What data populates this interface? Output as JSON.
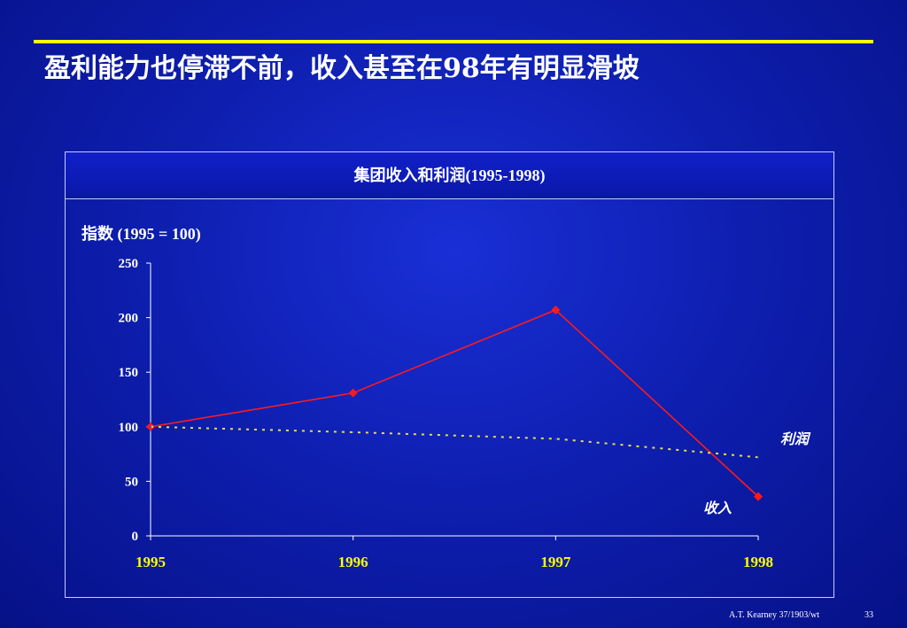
{
  "slide": {
    "title": "盈利能力也停滞不前，收入甚至在98年有明显滑坡"
  },
  "chart_data": {
    "type": "line",
    "title": "集团收入和利润(1995-1998)",
    "ylabel": "指数 (1995 = 100)",
    "categories": [
      "1995",
      "1996",
      "1997",
      "1998"
    ],
    "ylim": [
      0,
      250
    ],
    "yticks": [
      "0",
      "50",
      "100",
      "150",
      "200",
      "250"
    ],
    "grid": false,
    "series": [
      {
        "name": "收入",
        "values": [
          100,
          131,
          207,
          36
        ],
        "color": "#ff1a1a",
        "style": "solid",
        "marker": "diamond"
      },
      {
        "name": "利润",
        "values": [
          100,
          95,
          89,
          72
        ],
        "color": "#e6e04a",
        "style": "dotted",
        "marker": "none"
      }
    ]
  },
  "footer": {
    "source": "A.T. Kearney 37/1903/wt",
    "page": "33"
  },
  "colors": {
    "background": "#0e1fb0",
    "rule": "#ffff00",
    "tick_labels_x": "#ffff00",
    "axis": "#ffffff"
  }
}
